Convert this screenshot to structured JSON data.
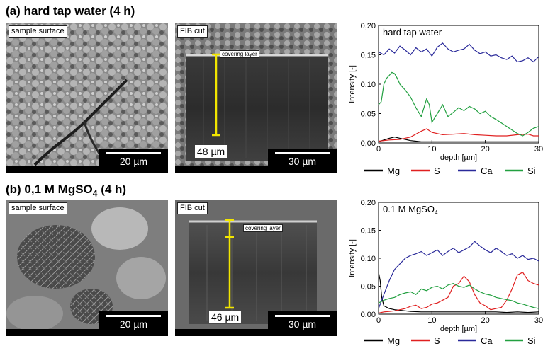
{
  "section_a": {
    "title": "(a) hard tap water (4 h)",
    "panel1": {
      "tag": "sample surface",
      "scalebar": "20 µm"
    },
    "panel2": {
      "tag": "FIB cut",
      "layer_label": "covering layer",
      "thickness": "48 µm",
      "scalebar": "30 µm"
    }
  },
  "section_b": {
    "title_prefix": "(b) 0,1 M MgSO",
    "title_sub": "4",
    "title_suffix": " (4 h)",
    "panel1": {
      "tag": "sample surface",
      "scalebar": "20 µm"
    },
    "panel2": {
      "tag": "FIB cut",
      "layer_label": "covering layer",
      "thickness": "46 µm",
      "scalebar": "30 µm"
    }
  },
  "legend": {
    "items": [
      {
        "name": "Mg",
        "color": "#000000"
      },
      {
        "name": "S",
        "color": "#e02020"
      },
      {
        "name": "Ca",
        "color": "#2a2a9a"
      },
      {
        "name": "Si",
        "color": "#22a040"
      }
    ]
  },
  "chart_data": [
    {
      "type": "line",
      "title": "hard tap water",
      "xlabel": "depth [µm]",
      "ylabel": "Intensity [-]",
      "xlim": [
        0,
        30
      ],
      "ylim": [
        0,
        0.2
      ],
      "xticks": [
        "0",
        "10",
        "20",
        "30"
      ],
      "yticks": [
        "0,00",
        "0,05",
        "0,10",
        "0,15",
        "0,20"
      ],
      "series": [
        {
          "name": "Mg",
          "color": "#000000",
          "x": [
            0,
            1,
            2,
            3,
            4,
            5,
            6,
            7,
            8,
            9,
            10,
            12,
            14,
            16,
            18,
            20,
            22,
            24,
            26,
            28,
            30
          ],
          "y": [
            0.002,
            0.005,
            0.008,
            0.01,
            0.008,
            0.006,
            0.004,
            0.003,
            0.002,
            0.002,
            0.002,
            0.002,
            0.002,
            0.002,
            0.002,
            0.002,
            0.002,
            0.002,
            0.002,
            0.002,
            0.002
          ]
        },
        {
          "name": "S",
          "color": "#e02020",
          "x": [
            0,
            2,
            4,
            6,
            8,
            9,
            10,
            12,
            14,
            16,
            18,
            20,
            22,
            24,
            26,
            28,
            29,
            30
          ],
          "y": [
            0.003,
            0.005,
            0.006,
            0.01,
            0.02,
            0.024,
            0.018,
            0.014,
            0.015,
            0.016,
            0.014,
            0.013,
            0.012,
            0.012,
            0.014,
            0.015,
            0.012,
            0.012
          ]
        },
        {
          "name": "Ca",
          "color": "#2a2a9a",
          "x": [
            0,
            1,
            2,
            3,
            4,
            5,
            6,
            7,
            8,
            9,
            10,
            11,
            12,
            13,
            14,
            15,
            16,
            17,
            18,
            19,
            20,
            21,
            22,
            23,
            24,
            25,
            26,
            27,
            28,
            29,
            30
          ],
          "y": [
            0.155,
            0.15,
            0.16,
            0.153,
            0.165,
            0.158,
            0.15,
            0.162,
            0.155,
            0.16,
            0.148,
            0.163,
            0.17,
            0.16,
            0.155,
            0.158,
            0.16,
            0.168,
            0.158,
            0.152,
            0.155,
            0.148,
            0.15,
            0.145,
            0.142,
            0.148,
            0.138,
            0.14,
            0.145,
            0.138,
            0.147
          ]
        },
        {
          "name": "Si",
          "color": "#22a040",
          "x": [
            0,
            0.5,
            1,
            1.5,
            2,
            2.5,
            3,
            3.5,
            4,
            5,
            6,
            7,
            8,
            9,
            9.5,
            10,
            11,
            12,
            13,
            14,
            15,
            16,
            17,
            18,
            19,
            20,
            21,
            22,
            23,
            24,
            25,
            26,
            27,
            28,
            29,
            30
          ],
          "y": [
            0.065,
            0.07,
            0.1,
            0.11,
            0.115,
            0.12,
            0.118,
            0.11,
            0.1,
            0.09,
            0.078,
            0.06,
            0.045,
            0.075,
            0.065,
            0.035,
            0.05,
            0.065,
            0.045,
            0.052,
            0.06,
            0.055,
            0.062,
            0.058,
            0.05,
            0.054,
            0.045,
            0.04,
            0.034,
            0.028,
            0.022,
            0.016,
            0.012,
            0.018,
            0.025,
            0.028
          ]
        }
      ]
    },
    {
      "type": "line",
      "title": "0.1 M MgSO",
      "title_sub": "4",
      "xlabel": "depth [µm]",
      "ylabel": "Intensity [-]",
      "xlim": [
        0,
        30
      ],
      "ylim": [
        0,
        0.2
      ],
      "xticks": [
        "0",
        "10",
        "20",
        "30"
      ],
      "yticks": [
        "0,00",
        "0,05",
        "0,10",
        "0,15",
        "0,20"
      ],
      "series": [
        {
          "name": "Mg",
          "color": "#000000",
          "x": [
            0,
            0.3,
            0.6,
            1,
            2,
            3,
            4,
            5,
            6,
            8,
            10,
            12,
            14,
            16,
            18,
            20,
            22,
            24,
            26,
            28,
            30
          ],
          "y": [
            0.075,
            0.06,
            0.03,
            0.015,
            0.01,
            0.008,
            0.007,
            0.006,
            0.005,
            0.004,
            0.004,
            0.004,
            0.004,
            0.004,
            0.004,
            0.004,
            0.004,
            0.003,
            0.004,
            0.003,
            0.004
          ]
        },
        {
          "name": "S",
          "color": "#e02020",
          "x": [
            0,
            1,
            2,
            3,
            4,
            5,
            6,
            7,
            8,
            9,
            10,
            11,
            12,
            13,
            14,
            15,
            16,
            17,
            18,
            19,
            20,
            21,
            22,
            23,
            24,
            25,
            26,
            27,
            28,
            29,
            30
          ],
          "y": [
            0.002,
            0.004,
            0.005,
            0.006,
            0.008,
            0.01,
            0.014,
            0.016,
            0.01,
            0.012,
            0.018,
            0.02,
            0.025,
            0.03,
            0.05,
            0.055,
            0.068,
            0.058,
            0.035,
            0.02,
            0.015,
            0.008,
            0.01,
            0.012,
            0.025,
            0.045,
            0.07,
            0.075,
            0.06,
            0.055,
            0.052
          ]
        },
        {
          "name": "Ca",
          "color": "#2a2a9a",
          "x": [
            0,
            1,
            2,
            3,
            4,
            5,
            6,
            7,
            8,
            9,
            10,
            11,
            12,
            13,
            14,
            15,
            16,
            17,
            18,
            19,
            20,
            21,
            22,
            23,
            24,
            25,
            26,
            27,
            28,
            29,
            30
          ],
          "y": [
            0.01,
            0.035,
            0.06,
            0.08,
            0.09,
            0.1,
            0.105,
            0.108,
            0.112,
            0.105,
            0.11,
            0.115,
            0.105,
            0.112,
            0.118,
            0.11,
            0.115,
            0.12,
            0.13,
            0.122,
            0.115,
            0.11,
            0.118,
            0.112,
            0.105,
            0.108,
            0.1,
            0.105,
            0.098,
            0.1,
            0.095
          ]
        },
        {
          "name": "Si",
          "color": "#22a040",
          "x": [
            0,
            1,
            2,
            3,
            4,
            5,
            6,
            7,
            8,
            9,
            10,
            11,
            12,
            13,
            14,
            15,
            16,
            17,
            18,
            19,
            20,
            21,
            22,
            23,
            24,
            25,
            26,
            27,
            28,
            29,
            30
          ],
          "y": [
            0.02,
            0.025,
            0.028,
            0.03,
            0.035,
            0.038,
            0.04,
            0.035,
            0.045,
            0.042,
            0.048,
            0.05,
            0.045,
            0.052,
            0.055,
            0.05,
            0.048,
            0.052,
            0.045,
            0.04,
            0.036,
            0.034,
            0.03,
            0.028,
            0.026,
            0.024,
            0.02,
            0.018,
            0.015,
            0.012,
            0.01
          ]
        }
      ]
    }
  ]
}
